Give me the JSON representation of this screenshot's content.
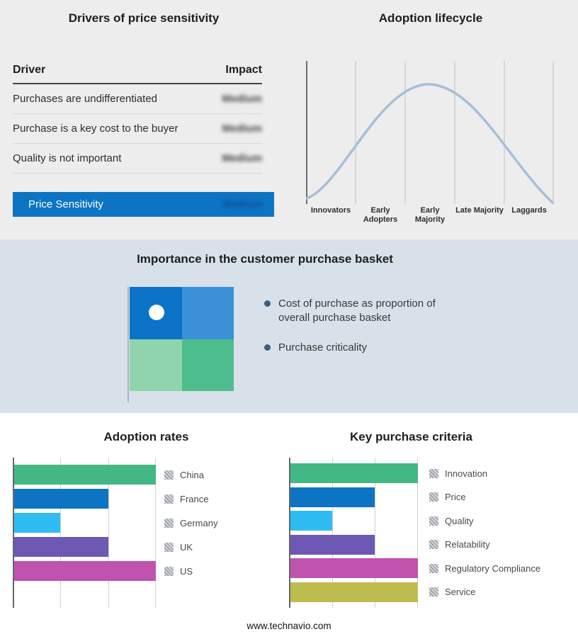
{
  "page": {
    "footer": "www.technavio.com"
  },
  "colors": {
    "top_section_bg": "#ededed",
    "middle_band_bg": "#d8e1ea",
    "accent_blue": "#0d74c4"
  },
  "drivers_panel": {
    "title": "Drivers of price sensitivity",
    "columns": [
      "Driver",
      "Impact"
    ],
    "rows": [
      {
        "driver": "Purchases are undifferentiated",
        "impact": "Medium"
      },
      {
        "driver": "Purchase is a key cost to the buyer",
        "impact": "Medium"
      },
      {
        "driver": "Quality is not important",
        "impact": "Medium"
      }
    ],
    "summary": {
      "label": "Price Sensitivity",
      "impact": "Medium",
      "bar_color": "#0d74c4"
    },
    "impact_values_blurred": true
  },
  "lifecycle_panel": {
    "title": "Adoption lifecycle",
    "stages": [
      "Innovators",
      "Early Adopters",
      "Early Majority",
      "Late Majority",
      "Laggards"
    ],
    "curve_color": "#a9bed6"
  },
  "basket_panel": {
    "title": "Importance in the customer purchase basket",
    "bullets": [
      "Cost of purchase as proportion of overall purchase basket",
      "Purchase criticality"
    ],
    "quadrant_colors": {
      "top_left": "#0b73c8",
      "top_right": "#3b90d8",
      "bottom_left": "#8fd4ad",
      "bottom_right": "#4ebd8d"
    }
  },
  "chart_data": [
    {
      "type": "bar",
      "title": "Adoption rates",
      "orientation": "horizontal",
      "categories": [
        "China",
        "France",
        "Germany",
        "UK",
        "US"
      ],
      "values": [
        3,
        2,
        1,
        2,
        3
      ],
      "colors": [
        "#43b884",
        "#0d74c4",
        "#2fbcf2",
        "#6d58b4",
        "#bf53ae"
      ],
      "xlim": [
        0,
        3
      ],
      "x_ticks_labeled": false,
      "grid": true,
      "legend_position": "right"
    },
    {
      "type": "bar",
      "title": "Key purchase criteria",
      "orientation": "horizontal",
      "categories": [
        "Innovation",
        "Price",
        "Quality",
        "Relatability",
        "Regulatory Compliance",
        "Service"
      ],
      "values": [
        3,
        2,
        1,
        2,
        3,
        3
      ],
      "colors": [
        "#43b884",
        "#0d74c4",
        "#2fbcf2",
        "#6d58b4",
        "#bf53ae",
        "#bdbd4f"
      ],
      "xlim": [
        0,
        3
      ],
      "x_ticks_labeled": false,
      "grid": true,
      "legend_position": "right"
    },
    {
      "type": "line",
      "title": "Adoption lifecycle",
      "x": [
        "Innovators",
        "Early Adopters",
        "Early Majority",
        "Late Majority",
        "Laggards"
      ],
      "values": [
        0.1,
        0.55,
        1.0,
        0.55,
        0.1
      ],
      "shape": "bell-curve",
      "color": "#a9bed6",
      "grid": true
    }
  ]
}
